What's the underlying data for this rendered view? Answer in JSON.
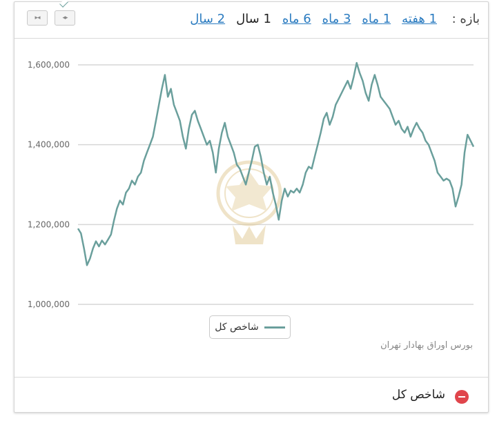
{
  "range": {
    "label": "بازه :",
    "options": [
      {
        "label": "1 هفته",
        "active": false
      },
      {
        "label": "1 ماه",
        "active": false
      },
      {
        "label": "3 ماه",
        "active": false
      },
      {
        "label": "6 ماه",
        "active": false
      },
      {
        "label": "1 سال",
        "active": true
      },
      {
        "label": "2 سال",
        "active": false
      }
    ],
    "zoom_in_icon": "zoom-in-icon",
    "zoom_out_icon": "zoom-out-icon"
  },
  "chart_data": {
    "type": "line",
    "ylim": [
      1000000,
      1600000
    ],
    "yticks": [
      1000000,
      1200000,
      1400000,
      1600000
    ],
    "ytick_labels": [
      "1,000,000",
      "1,200,000",
      "1,400,000",
      "1,600,000"
    ],
    "grid": true,
    "legend_position": "bottom-center",
    "series": [
      {
        "name": "شاخص کل",
        "color": "#6a9f9c",
        "values": [
          1190000,
          1178000,
          1140000,
          1098000,
          1115000,
          1140000,
          1158000,
          1145000,
          1160000,
          1150000,
          1162000,
          1175000,
          1210000,
          1240000,
          1260000,
          1250000,
          1280000,
          1290000,
          1310000,
          1300000,
          1320000,
          1330000,
          1360000,
          1380000,
          1400000,
          1420000,
          1460000,
          1500000,
          1540000,
          1575000,
          1520000,
          1540000,
          1500000,
          1480000,
          1460000,
          1420000,
          1390000,
          1440000,
          1475000,
          1485000,
          1460000,
          1440000,
          1420000,
          1400000,
          1410000,
          1380000,
          1330000,
          1390000,
          1430000,
          1455000,
          1420000,
          1400000,
          1380000,
          1350000,
          1340000,
          1320000,
          1300000,
          1330000,
          1360000,
          1395000,
          1400000,
          1370000,
          1330000,
          1300000,
          1320000,
          1280000,
          1250000,
          1212000,
          1260000,
          1290000,
          1270000,
          1285000,
          1280000,
          1290000,
          1280000,
          1300000,
          1330000,
          1345000,
          1340000,
          1370000,
          1400000,
          1430000,
          1465000,
          1480000,
          1450000,
          1470000,
          1500000,
          1515000,
          1530000,
          1545000,
          1560000,
          1540000,
          1570000,
          1605000,
          1580000,
          1560000,
          1530000,
          1510000,
          1550000,
          1575000,
          1550000,
          1520000,
          1510000,
          1500000,
          1490000,
          1470000,
          1450000,
          1460000,
          1440000,
          1430000,
          1445000,
          1420000,
          1440000,
          1455000,
          1440000,
          1430000,
          1410000,
          1400000,
          1380000,
          1360000,
          1330000,
          1320000,
          1310000,
          1315000,
          1310000,
          1290000,
          1245000,
          1270000,
          1300000,
          1380000,
          1425000,
          1410000,
          1395000
        ]
      }
    ]
  },
  "source_credit": "بورس اوراق بهادار تهران",
  "footer": {
    "label": "شاخص کل",
    "remove_icon": "remove-icon",
    "remove_color": "#e0454c"
  }
}
